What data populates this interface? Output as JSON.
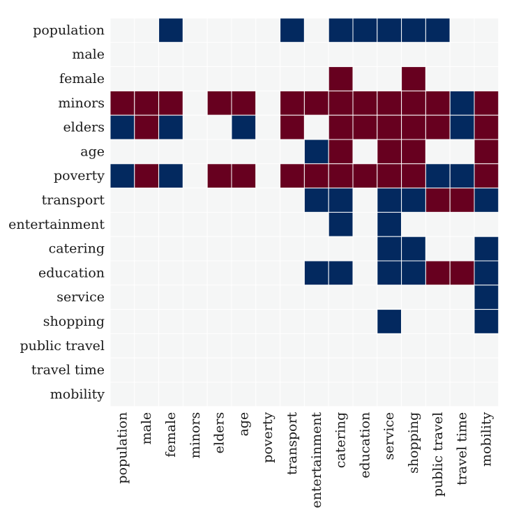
{
  "chart_data": {
    "type": "heatmap",
    "title": "",
    "xlabel": "",
    "ylabel": "",
    "rows": [
      "population",
      "male",
      "female",
      "minors",
      "elders",
      "age",
      "poverty",
      "transport",
      "entertainment",
      "catering",
      "education",
      "service",
      "shopping",
      "public travel",
      "travel time",
      "mobility"
    ],
    "columns": [
      "population",
      "male",
      "female",
      "minors",
      "elders",
      "age",
      "poverty",
      "transport",
      "entertainment",
      "catering",
      "education",
      "service",
      "shopping",
      "public travel",
      "travel time",
      "mobility"
    ],
    "value_legend": {
      "-1": "#03295f",
      "0": "#f5f6f6",
      "1": "#67001f"
    },
    "values": [
      [
        0,
        0,
        -1,
        0,
        0,
        0,
        0,
        -1,
        0,
        -1,
        -1,
        -1,
        -1,
        -1,
        0,
        0
      ],
      [
        0,
        0,
        0,
        0,
        0,
        0,
        0,
        0,
        0,
        0,
        0,
        0,
        0,
        0,
        0,
        0
      ],
      [
        0,
        0,
        0,
        0,
        0,
        0,
        0,
        0,
        0,
        1,
        0,
        0,
        1,
        0,
        0,
        0
      ],
      [
        1,
        1,
        1,
        0,
        1,
        1,
        0,
        1,
        1,
        1,
        1,
        1,
        1,
        1,
        -1,
        1
      ],
      [
        -1,
        1,
        -1,
        0,
        0,
        -1,
        0,
        1,
        0,
        1,
        1,
        1,
        1,
        1,
        -1,
        1
      ],
      [
        0,
        0,
        0,
        0,
        0,
        0,
        0,
        0,
        -1,
        1,
        0,
        1,
        1,
        0,
        0,
        1
      ],
      [
        -1,
        1,
        -1,
        0,
        1,
        1,
        0,
        1,
        1,
        1,
        1,
        1,
        1,
        -1,
        -1,
        1
      ],
      [
        0,
        0,
        0,
        0,
        0,
        0,
        0,
        0,
        -1,
        -1,
        0,
        -1,
        -1,
        1,
        1,
        -1
      ],
      [
        0,
        0,
        0,
        0,
        0,
        0,
        0,
        0,
        0,
        -1,
        0,
        -1,
        0,
        0,
        0,
        0
      ],
      [
        0,
        0,
        0,
        0,
        0,
        0,
        0,
        0,
        0,
        0,
        0,
        -1,
        -1,
        0,
        0,
        -1
      ],
      [
        0,
        0,
        0,
        0,
        0,
        0,
        0,
        0,
        -1,
        -1,
        0,
        -1,
        -1,
        1,
        1,
        -1
      ],
      [
        0,
        0,
        0,
        0,
        0,
        0,
        0,
        0,
        0,
        0,
        0,
        0,
        0,
        0,
        0,
        -1
      ],
      [
        0,
        0,
        0,
        0,
        0,
        0,
        0,
        0,
        0,
        0,
        0,
        -1,
        0,
        0,
        0,
        -1
      ],
      [
        0,
        0,
        0,
        0,
        0,
        0,
        0,
        0,
        0,
        0,
        0,
        0,
        0,
        0,
        0,
        0
      ],
      [
        0,
        0,
        0,
        0,
        0,
        0,
        0,
        0,
        0,
        0,
        0,
        0,
        0,
        0,
        0,
        0
      ],
      [
        0,
        0,
        0,
        0,
        0,
        0,
        0,
        0,
        0,
        0,
        0,
        0,
        0,
        0,
        0,
        0
      ]
    ]
  }
}
